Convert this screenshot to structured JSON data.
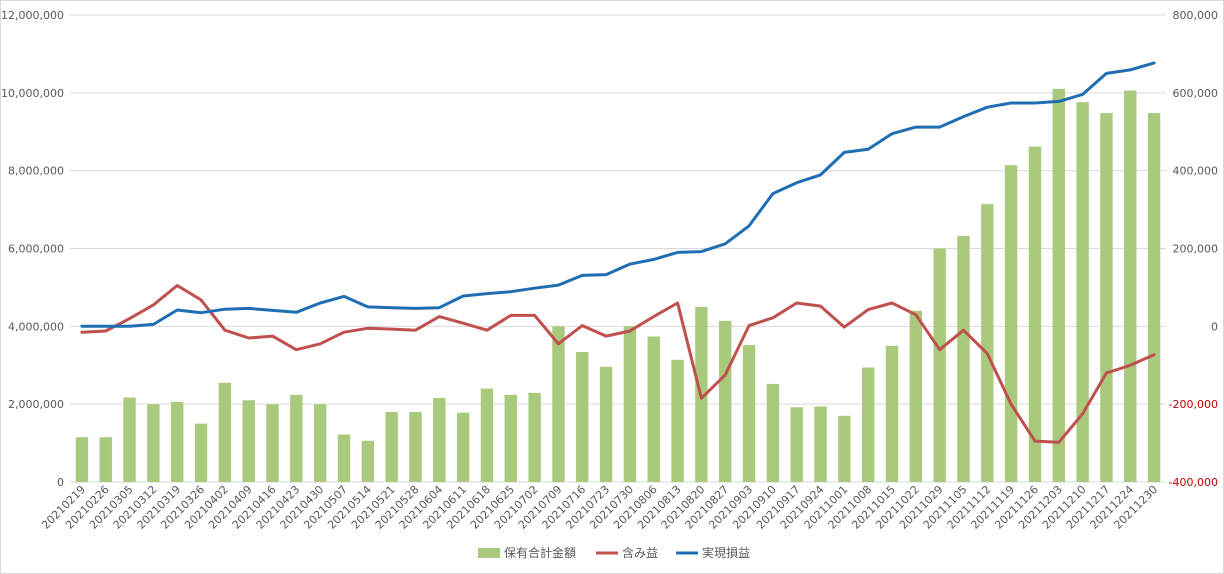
{
  "chart_data": {
    "type": "bar-line-combo",
    "title": "",
    "categories": [
      "20210219",
      "20210226",
      "20210305",
      "20210312",
      "20210319",
      "20210326",
      "20210402",
      "20210409",
      "20210416",
      "20210423",
      "20210430",
      "20210507",
      "20210514",
      "20210521",
      "20210528",
      "20210604",
      "20210611",
      "20210618",
      "20210625",
      "20210702",
      "20210709",
      "20210716",
      "20210723",
      "20210730",
      "20210806",
      "20210813",
      "20210820",
      "20210827",
      "20210903",
      "20210910",
      "20210917",
      "20210924",
      "20211001",
      "20211008",
      "20211015",
      "20211022",
      "20211029",
      "20211105",
      "20211112",
      "20211119",
      "20211126",
      "20211203",
      "20211210",
      "20211217",
      "20211224",
      "20211230"
    ],
    "series": [
      {
        "name": "保有合計金額",
        "type": "bar",
        "axis": "left",
        "color": "#a9c97c",
        "values": [
          1150000,
          1150000,
          2170000,
          2000000,
          2060000,
          1500000,
          2550000,
          2100000,
          2000000,
          2240000,
          2000000,
          1220000,
          1060000,
          1800000,
          1800000,
          2160000,
          1780000,
          2400000,
          2240000,
          2290000,
          4000000,
          3340000,
          2960000,
          4000000,
          3740000,
          3140000,
          4500000,
          4140000,
          3520000,
          2520000,
          1920000,
          1940000,
          1700000,
          2940000,
          3500000,
          4400000,
          6000000,
          6320000,
          7140000,
          8140000,
          8620000,
          10100000,
          9760000,
          9480000,
          10060000,
          9480000
        ]
      },
      {
        "name": "含み益",
        "type": "line",
        "axis": "right",
        "color": "#c0504d",
        "values": [
          -15000,
          -12000,
          20000,
          55000,
          105000,
          68000,
          -10000,
          -30000,
          -25000,
          -60000,
          -45000,
          -15000,
          -5000,
          -7000,
          -10000,
          25000,
          8000,
          -10000,
          28000,
          28000,
          -45000,
          2000,
          -25000,
          -12000,
          25000,
          60000,
          -185000,
          -125000,
          2000,
          22000,
          60000,
          52000,
          -2000,
          43000,
          60000,
          30000,
          -60000,
          -10000,
          -70000,
          -200000,
          -295000,
          -298000,
          -225000,
          -120000,
          -100000,
          -73000
        ]
      },
      {
        "name": "実現損益",
        "type": "line",
        "axis": "right",
        "color": "#1f6eb4",
        "values": [
          0,
          0,
          0,
          5000,
          42000,
          35000,
          44000,
          46000,
          41000,
          36000,
          60000,
          77000,
          50000,
          48000,
          46000,
          48000,
          78000,
          84000,
          89000,
          98000,
          106000,
          131000,
          133000,
          160000,
          172000,
          190000,
          192000,
          212000,
          258000,
          341000,
          369000,
          389000,
          447000,
          455000,
          495000,
          512000,
          512000,
          539000,
          563000,
          574000,
          574000,
          578000,
          596000,
          650000,
          659000,
          677000
        ]
      }
    ],
    "y_left": {
      "range": [
        0,
        12000000
      ],
      "ticks": [
        "0",
        "2,000,000",
        "4,000,000",
        "6,000,000",
        "8,000,000",
        "10,000,000",
        "12,000,000"
      ]
    },
    "y_right": {
      "range": [
        -400000,
        800000
      ],
      "ticks": [
        "-400,000",
        "-200,000",
        "0",
        "200,000",
        "400,000",
        "600,000",
        "800,000"
      ]
    },
    "grid": true,
    "legend_position": "bottom"
  }
}
